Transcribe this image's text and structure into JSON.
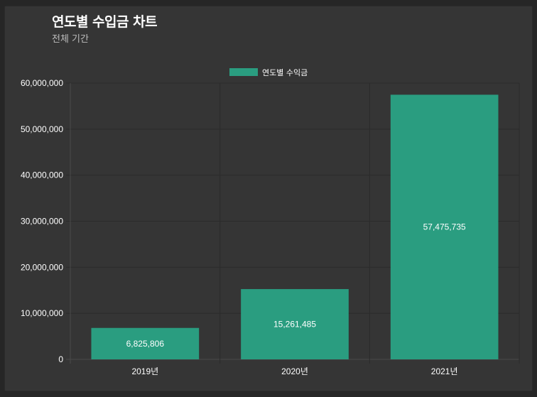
{
  "header": {
    "title": "연도별 수입금 차트",
    "subtitle": "전체 기간"
  },
  "colors": {
    "bar": "#2a9d80",
    "grid": "#2b2b2b",
    "axis_text": "#ffffff"
  },
  "chart_data": {
    "type": "bar",
    "categories": [
      "2019년",
      "2020년",
      "2021년"
    ],
    "series": [
      {
        "name": "연도별 수익금",
        "values": [
          6825806,
          15261485,
          57475735
        ]
      }
    ],
    "data_labels": [
      "6,825,806",
      "15,261,485",
      "57,475,735"
    ],
    "y_ticks": [
      "0",
      "10,000,000",
      "20,000,000",
      "30,000,000",
      "40,000,000",
      "50,000,000",
      "60,000,000"
    ],
    "ylim": [
      0,
      60000000
    ],
    "grid": true,
    "legend_position": "top"
  }
}
